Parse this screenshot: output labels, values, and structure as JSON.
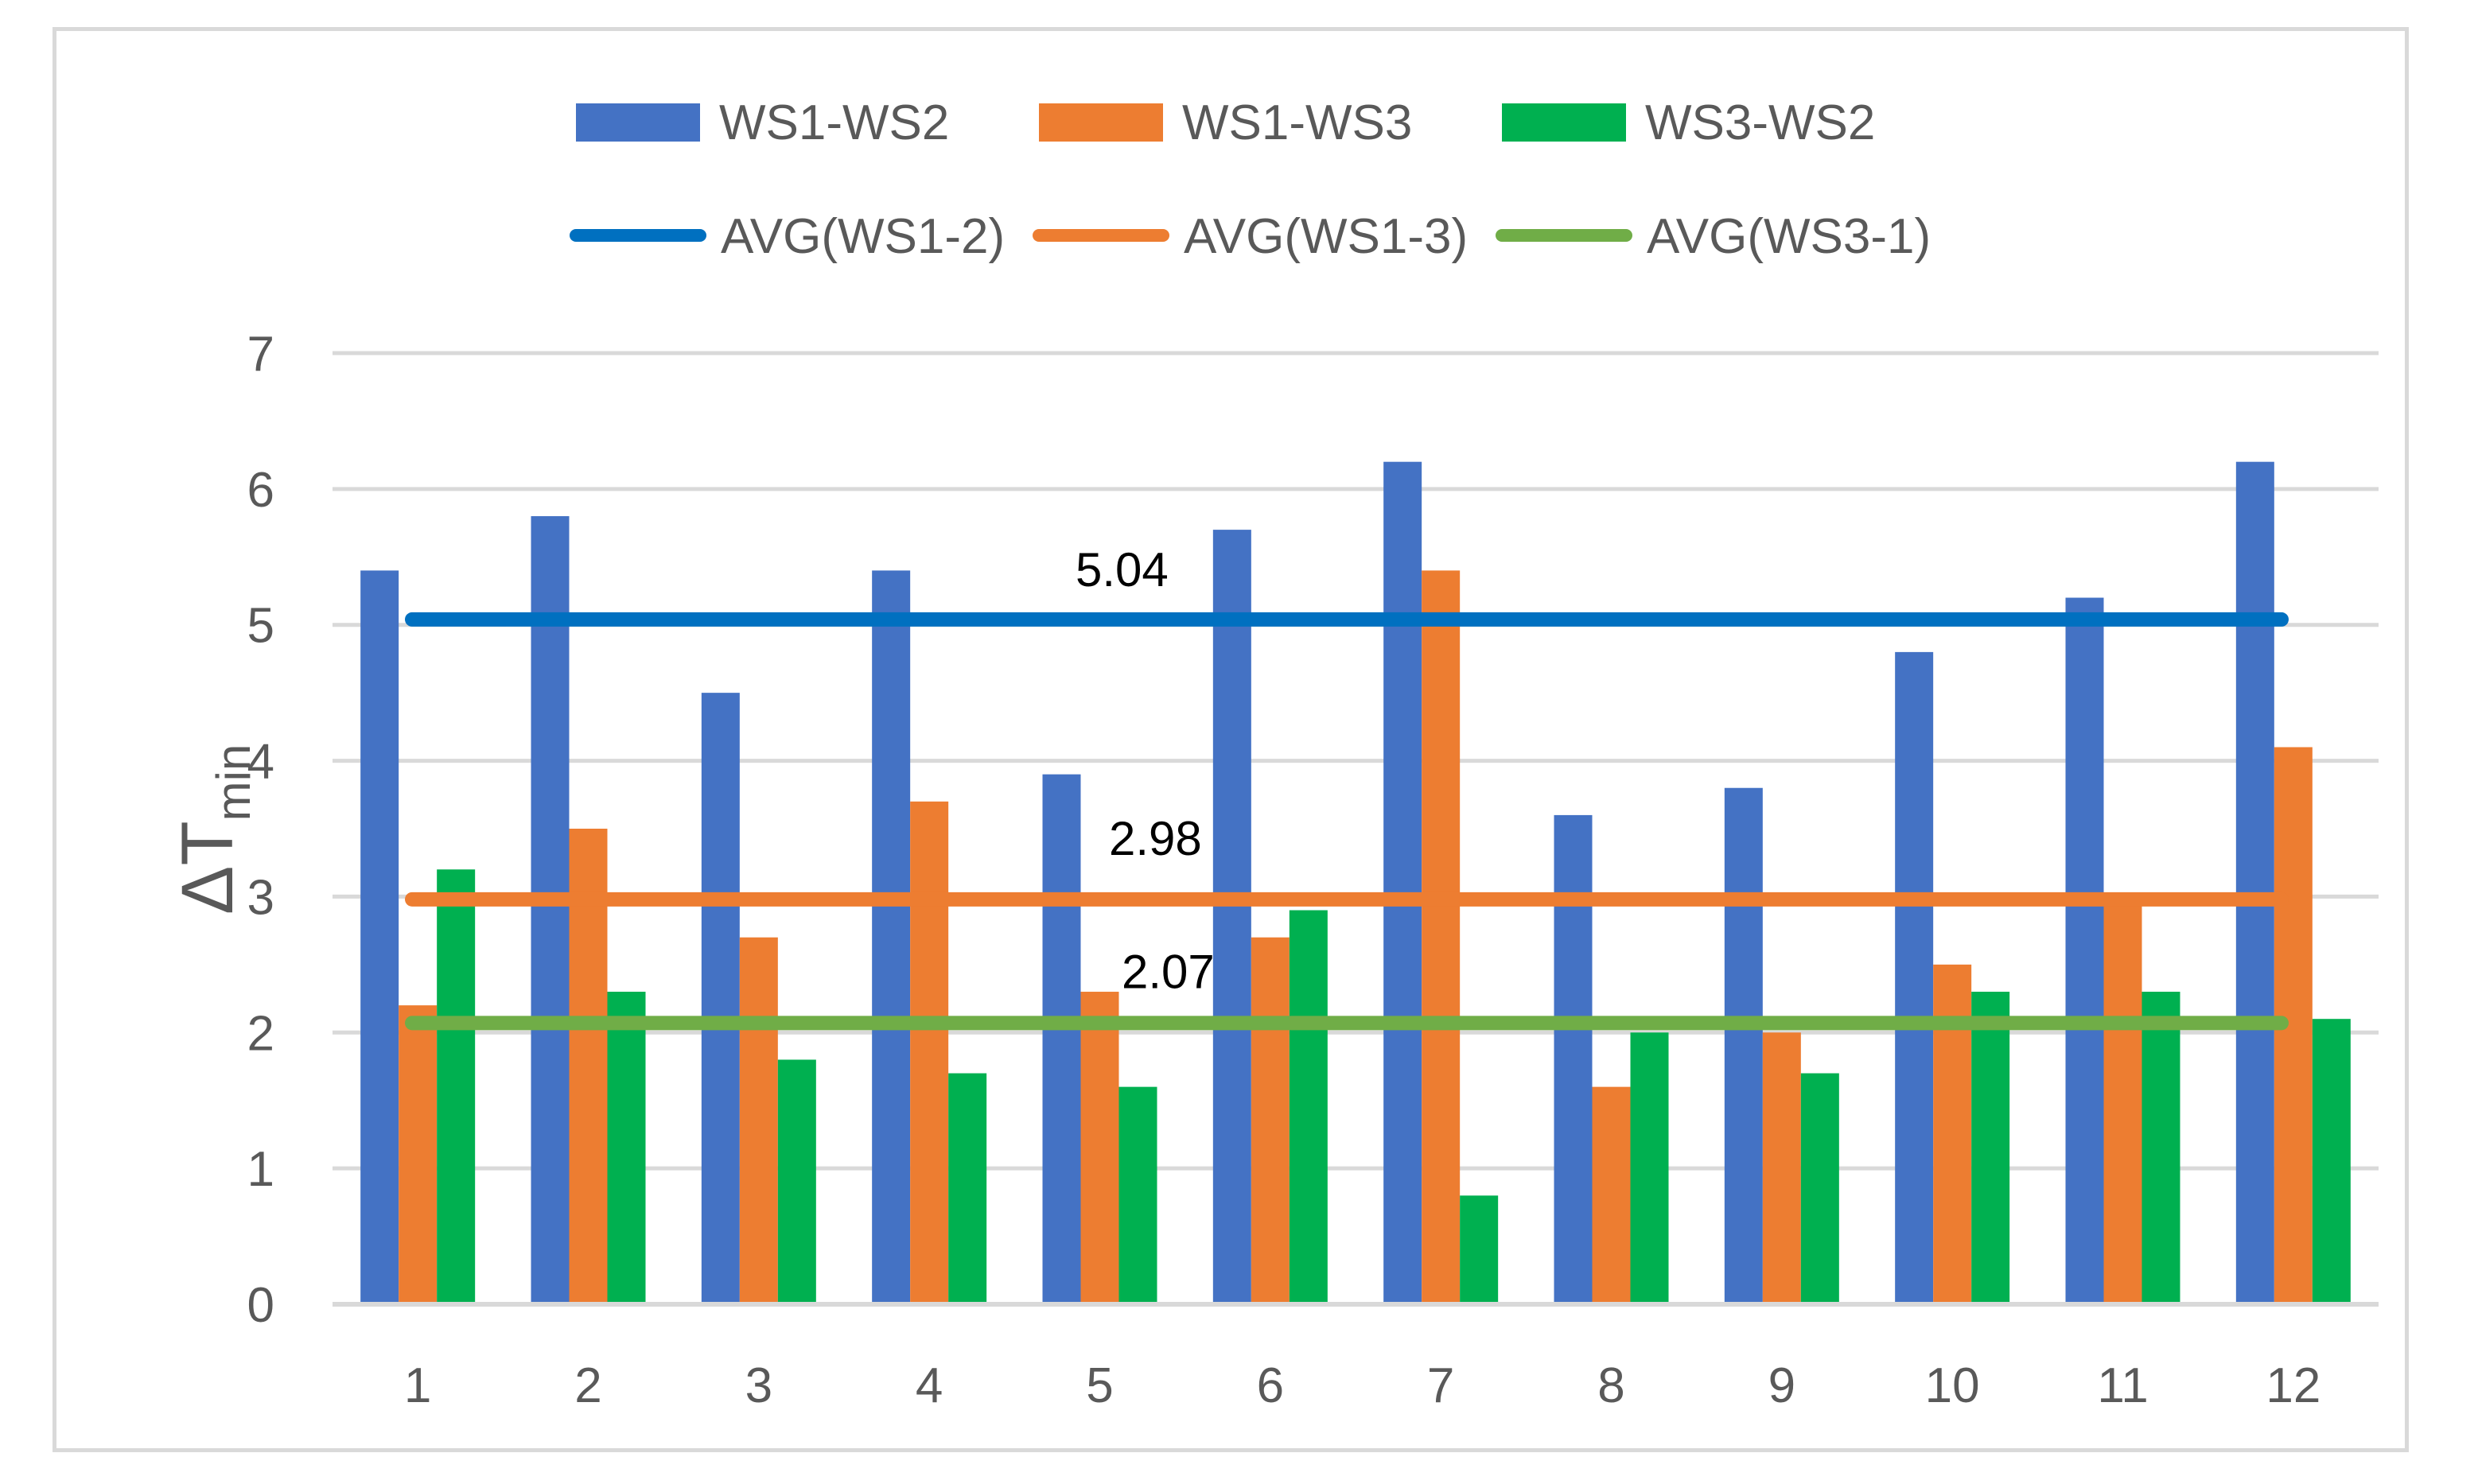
{
  "chart_data": {
    "type": "bar",
    "title": "",
    "xlabel": "",
    "ylabel": "ΔT",
    "ylabel_subscript": "min",
    "ylim": [
      0,
      7
    ],
    "yticks": [
      0,
      1,
      2,
      3,
      4,
      5,
      6,
      7
    ],
    "grid": true,
    "legend_position": "top",
    "categories": [
      "1",
      "2",
      "3",
      "4",
      "5",
      "6",
      "7",
      "8",
      "9",
      "10",
      "11",
      "12"
    ],
    "series": [
      {
        "name": "WS1-WS2",
        "color": "#4472c4",
        "values": [
          5.4,
          5.8,
          4.5,
          5.4,
          3.9,
          5.7,
          6.2,
          3.6,
          3.8,
          4.8,
          5.2,
          6.2
        ]
      },
      {
        "name": "WS1-WS3",
        "color": "#ed7d31",
        "values": [
          2.2,
          3.5,
          2.7,
          3.7,
          2.3,
          2.7,
          5.4,
          1.6,
          2.0,
          2.5,
          3.0,
          4.1
        ]
      },
      {
        "name": "WS3-WS2",
        "color": "#00b050",
        "values": [
          3.2,
          2.3,
          1.8,
          1.7,
          1.6,
          2.9,
          0.8,
          2.0,
          1.7,
          2.3,
          2.3,
          2.1
        ]
      }
    ],
    "average_lines": [
      {
        "name": "AVG(WS1-2)",
        "color": "#0070c0",
        "value": 5.04,
        "label": "5.04"
      },
      {
        "name": "AVG(WS1-3)",
        "color": "#ed7d31",
        "value": 2.98,
        "label": "2.98"
      },
      {
        "name": "AVG(WS3-1)",
        "color": "#70ad47",
        "value": 2.07,
        "label": "2.07"
      }
    ]
  }
}
